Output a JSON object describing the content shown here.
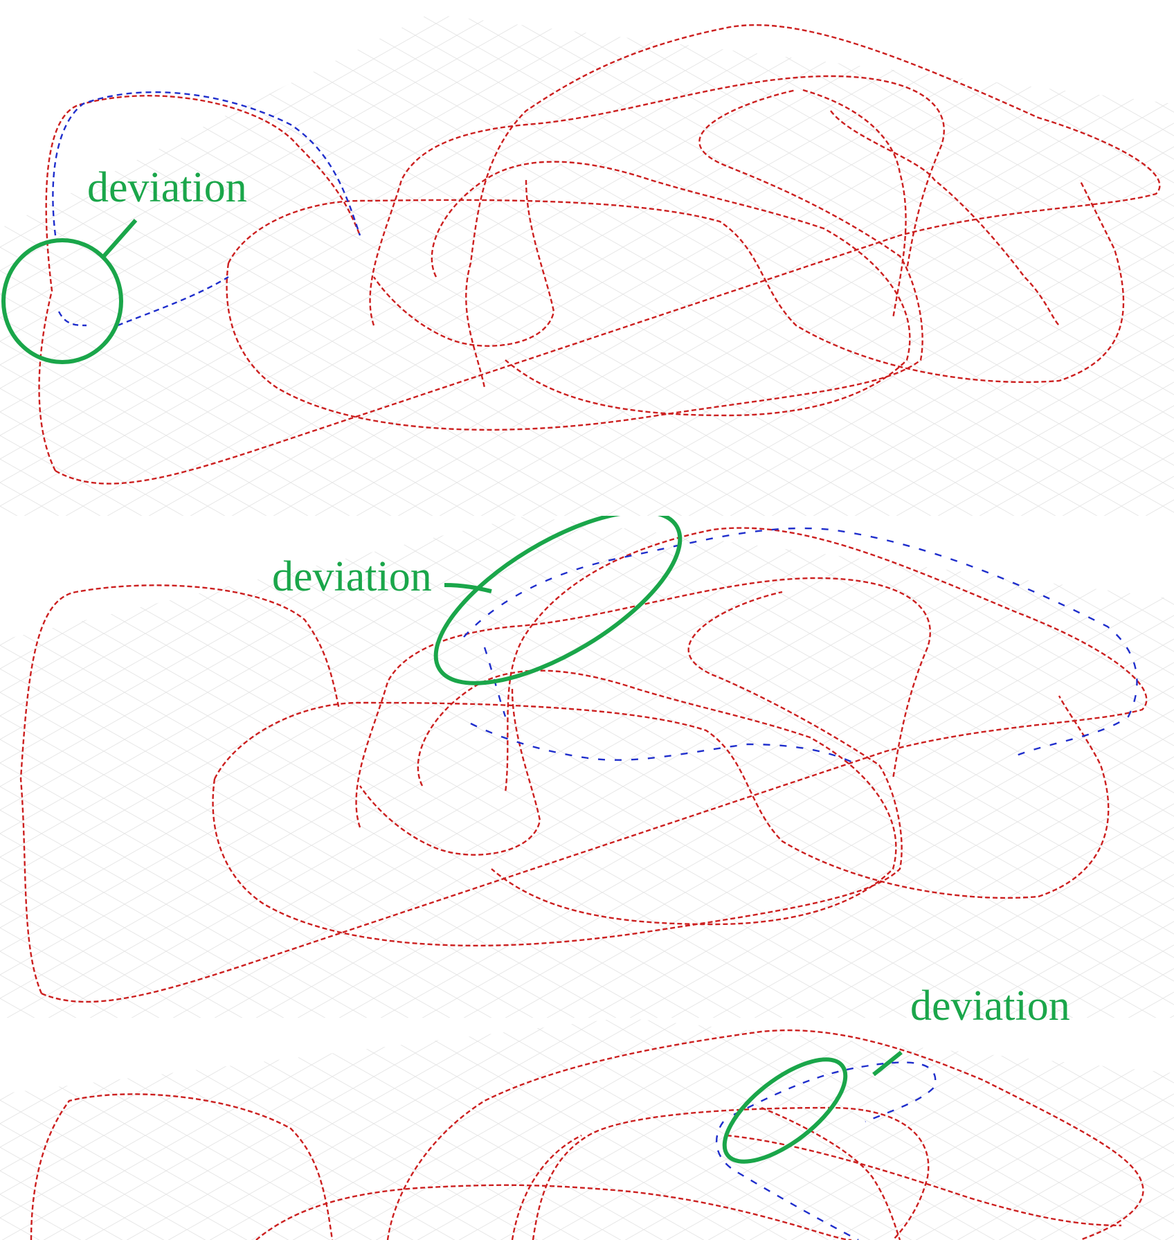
{
  "annotations": {
    "top_label": "deviation",
    "middle_label": "deviation",
    "bottom_label": "deviation"
  },
  "colors": {
    "ground_truth_trajectory": "#cc1f1f",
    "estimated_trajectory": "#1f2ecc",
    "annotation": "#1aa64a",
    "grid": "#d8d8d8"
  }
}
